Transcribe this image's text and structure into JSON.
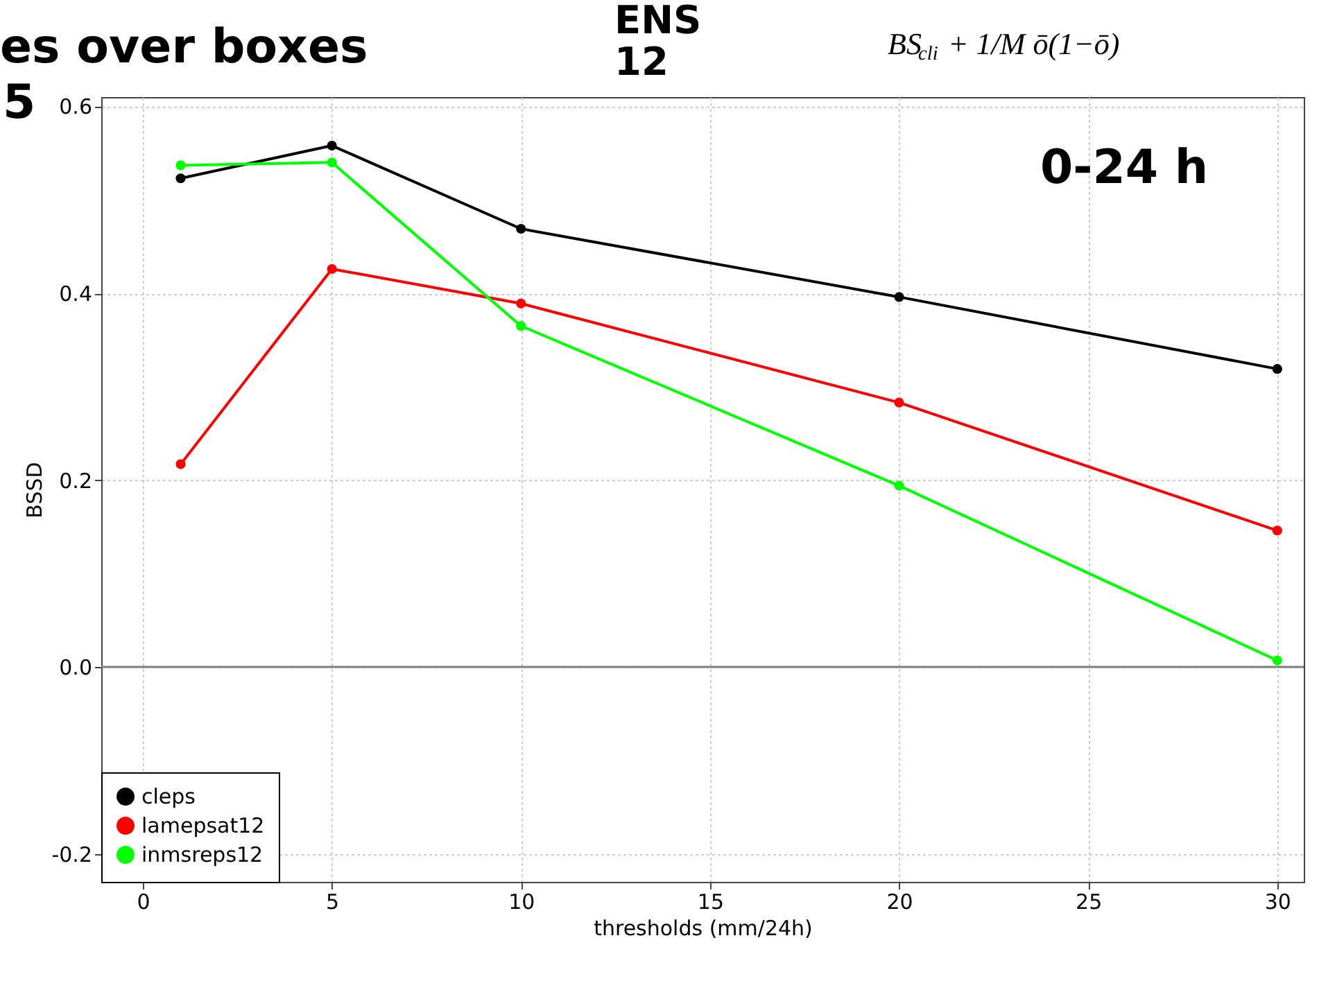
{
  "chart_data": {
    "type": "line",
    "annotations": [
      "es over boxes",
      "5",
      "ENS 12",
      "0-24 h",
      "BS$_{cli}$ + 1/M ō(1−ō)"
    ],
    "xlabel": "thresholds (mm/24h)",
    "ylabel": "BSSD",
    "x": [
      1,
      5,
      10,
      20,
      30
    ],
    "series": [
      {
        "name": "cleps",
        "color": "#000000",
        "values": [
          0.523,
          0.558,
          0.469,
          0.396,
          0.319
        ]
      },
      {
        "name": "lamepsat12",
        "color": "#ff0000",
        "values": [
          0.217,
          0.426,
          0.389,
          0.283,
          0.146
        ]
      },
      {
        "name": "inmsreps12",
        "color": "#00ff00",
        "values": [
          0.537,
          0.54,
          0.365,
          0.194,
          0.007
        ]
      }
    ],
    "xlim": [
      -1.1,
      30.7
    ],
    "ylim": [
      -0.23,
      0.61
    ],
    "xticks": [
      0,
      5,
      10,
      15,
      20,
      25,
      30
    ],
    "yticks": [
      {
        "value": -0.2,
        "label": "-0.2"
      },
      {
        "value": 0,
        "label": "0.0"
      },
      {
        "value": 0.2,
        "label": "0.2"
      },
      {
        "value": 0.4,
        "label": "0.4"
      },
      {
        "value": 0.6,
        "label": "0.6"
      }
    ],
    "ref_lines": [
      {
        "axis": "y",
        "value": 0,
        "color": "#808080"
      }
    ],
    "grid": true,
    "legend": "bottom left",
    "marker": "circle",
    "line_style": "solid"
  }
}
